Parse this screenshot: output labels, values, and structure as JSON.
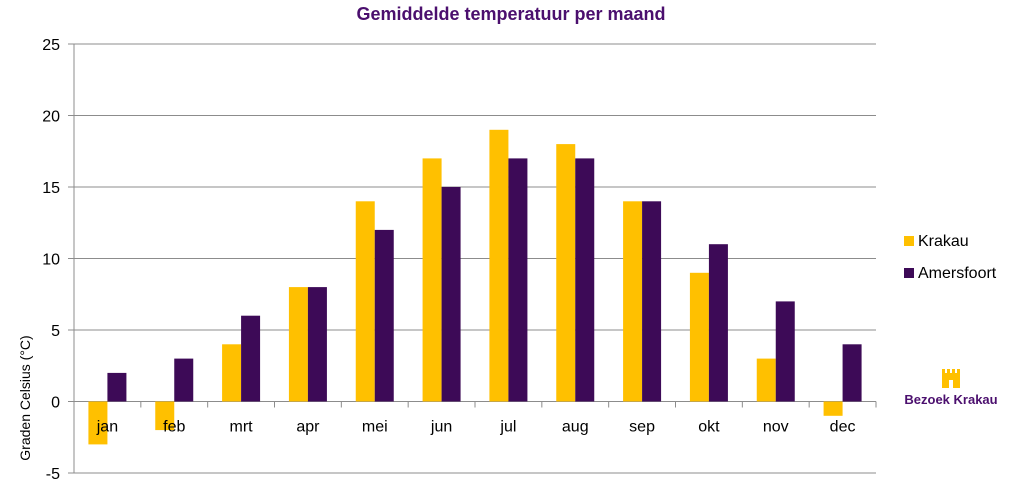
{
  "chart_data": {
    "type": "bar",
    "title": "Gemiddelde temperatuur per maand",
    "ylabel": "Graden Celsius (°C)",
    "xlabel": "",
    "categories": [
      "jan",
      "feb",
      "mrt",
      "apr",
      "mei",
      "jun",
      "jul",
      "aug",
      "sep",
      "okt",
      "nov",
      "dec"
    ],
    "series": [
      {
        "name": "Krakau",
        "color": "#FFC000",
        "values": [
          -3,
          -2,
          4,
          8,
          14,
          17,
          19,
          18,
          14,
          9,
          3,
          -1
        ]
      },
      {
        "name": "Amersfoort",
        "color": "#3D0A57",
        "values": [
          2,
          3,
          6,
          8,
          12,
          15,
          17,
          17,
          14,
          11,
          7,
          4
        ]
      }
    ],
    "ylim": [
      -5,
      25
    ],
    "yticks": [
      -5,
      0,
      5,
      10,
      15,
      20,
      25
    ],
    "grid": true,
    "legend_position": "right"
  },
  "colors": {
    "title": "#4B0F6E",
    "grid": "#8C8C8C"
  },
  "logo": {
    "text": "Bezoek Krakau",
    "icon": "castle-icon",
    "text_color": "#4B0F6E",
    "icon_color": "#FFC000"
  }
}
